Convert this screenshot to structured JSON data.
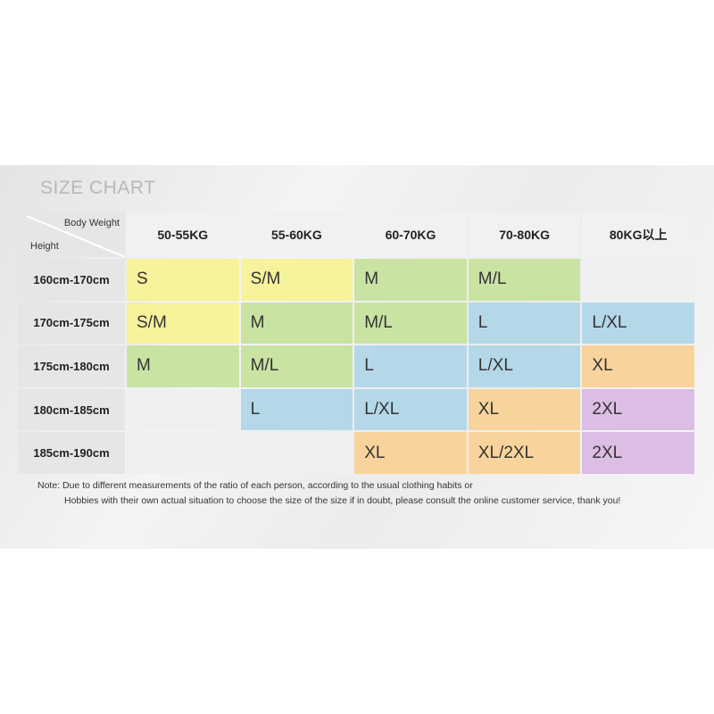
{
  "title": "SIZE CHART",
  "corner": {
    "top": "Body Weight",
    "bottom": "Height"
  },
  "weights": [
    "50-55KG",
    "55-60KG",
    "60-70KG",
    "70-80KG",
    "80KG以上"
  ],
  "rows": [
    {
      "height": "160cm-170cm",
      "sizes": [
        "S",
        "S/M",
        "M",
        "M/L",
        ""
      ]
    },
    {
      "height": "170cm-175cm",
      "sizes": [
        "S/M",
        "M",
        "M/L",
        "L",
        "L/XL"
      ]
    },
    {
      "height": "175cm-180cm",
      "sizes": [
        "M",
        "M/L",
        "L",
        "L/XL",
        "XL"
      ]
    },
    {
      "height": "180cm-185cm",
      "sizes": [
        "",
        "L",
        "L/XL",
        "XL",
        "2XL"
      ]
    },
    {
      "height": "185cm-190cm",
      "sizes": [
        "",
        "",
        "XL",
        "XL/2XL",
        "2XL"
      ]
    }
  ],
  "colors": {
    "S": "#f7f29c",
    "S/M": "#f7f29c",
    "M": "#c9e3a3",
    "M/L": "#c9e3a3",
    "L": "#b5d8e9",
    "L/XL": "#b5d8e9",
    "XL": "#f8d49c",
    "XL/2XL": "#f8d49c",
    "2XL": "#dcbde3",
    "": "#f0f0f0"
  },
  "note": {
    "line1": "Note: Due to different measurements of the ratio of each person, according to the usual clothing habits or",
    "line2": "Hobbies with their own actual situation to choose the size of the size if in doubt, please consult the online customer service, thank you!"
  }
}
